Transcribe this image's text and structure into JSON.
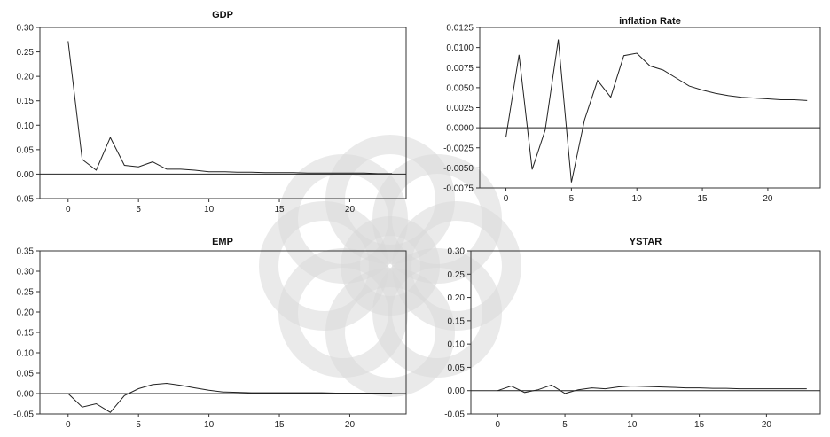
{
  "chart_data": [
    {
      "type": "line",
      "title": "GDP",
      "xlabel": "",
      "ylabel": "",
      "xlim": [
        -2,
        24
      ],
      "ylim": [
        -0.05,
        0.3
      ],
      "xticks": [
        0,
        5,
        10,
        15,
        20
      ],
      "yticks": [
        "-0.05",
        "0.00",
        "0.05",
        "0.10",
        "0.15",
        "0.20",
        "0.25",
        "0.30"
      ],
      "x": [
        0,
        1,
        2,
        3,
        4,
        5,
        6,
        7,
        8,
        9,
        10,
        11,
        12,
        13,
        14,
        15,
        16,
        17,
        18,
        19,
        20,
        21,
        22,
        23
      ],
      "series": [
        {
          "values": [
            0.272,
            0.03,
            0.008,
            0.075,
            0.018,
            0.015,
            0.025,
            0.01,
            0.01,
            0.008,
            0.005,
            0.005,
            0.004,
            0.004,
            0.003,
            0.003,
            0.003,
            0.002,
            0.002,
            0.002,
            0.002,
            0.002,
            0.001,
            0.001
          ]
        }
      ]
    },
    {
      "type": "line",
      "title": "inflation Rate",
      "xlabel": "",
      "ylabel": "",
      "xlim": [
        -2,
        24
      ],
      "ylim": [
        -0.0075,
        0.0125
      ],
      "xticks": [
        0,
        5,
        10,
        15,
        20
      ],
      "yticks": [
        "-0.0075",
        "-0.0050",
        "-0.0025",
        "0.0000",
        "0.0025",
        "0.0050",
        "0.0075",
        "0.0100",
        "0.0125"
      ],
      "x": [
        0,
        1,
        2,
        3,
        4,
        5,
        6,
        7,
        8,
        9,
        10,
        11,
        12,
        13,
        14,
        15,
        16,
        17,
        18,
        19,
        20,
        21,
        22,
        23
      ],
      "series": [
        {
          "values": [
            -0.0012,
            0.0091,
            -0.0052,
            -0.0003,
            0.011,
            -0.0068,
            0.001,
            0.0059,
            0.0038,
            0.009,
            0.0093,
            0.0077,
            0.0072,
            0.0062,
            0.0052,
            0.0047,
            0.0043,
            0.004,
            0.0038,
            0.0037,
            0.0036,
            0.0035,
            0.0035,
            0.0034
          ]
        }
      ]
    },
    {
      "type": "line",
      "title": "EMP",
      "xlabel": "",
      "ylabel": "",
      "xlim": [
        -2,
        24
      ],
      "ylim": [
        -0.05,
        0.35
      ],
      "xticks": [
        0,
        5,
        10,
        15,
        20
      ],
      "yticks": [
        "-0.05",
        "0.00",
        "0.05",
        "0.10",
        "0.15",
        "0.20",
        "0.25",
        "0.30",
        "0.35"
      ],
      "x": [
        0,
        1,
        2,
        3,
        4,
        5,
        6,
        7,
        8,
        9,
        10,
        11,
        12,
        13,
        14,
        15,
        16,
        17,
        18,
        19,
        20,
        21,
        22,
        23
      ],
      "series": [
        {
          "values": [
            0.0,
            -0.033,
            -0.025,
            -0.046,
            -0.005,
            0.012,
            0.022,
            0.025,
            0.02,
            0.014,
            0.008,
            0.004,
            0.003,
            0.002,
            0.002,
            0.002,
            0.002,
            0.002,
            0.002,
            0.001,
            0.001,
            0.001,
            0.001,
            0.001
          ]
        }
      ]
    },
    {
      "type": "line",
      "title": "YSTAR",
      "xlabel": "",
      "ylabel": "",
      "xlim": [
        -2,
        24
      ],
      "ylim": [
        -0.05,
        0.3
      ],
      "xticks": [
        0,
        5,
        10,
        15,
        20
      ],
      "yticks": [
        "-0.05",
        "0.00",
        "0.05",
        "0.10",
        "0.15",
        "0.20",
        "0.25",
        "0.30"
      ],
      "x": [
        0,
        1,
        2,
        3,
        4,
        5,
        6,
        7,
        8,
        9,
        10,
        11,
        12,
        13,
        14,
        15,
        16,
        17,
        18,
        19,
        20,
        21,
        22,
        23
      ],
      "series": [
        {
          "values": [
            0.0,
            0.01,
            -0.004,
            0.002,
            0.012,
            -0.006,
            0.002,
            0.006,
            0.004,
            0.008,
            0.01,
            0.009,
            0.008,
            0.007,
            0.006,
            0.006,
            0.005,
            0.005,
            0.004,
            0.004,
            0.004,
            0.004,
            0.004,
            0.004
          ]
        }
      ]
    }
  ],
  "watermark": {
    "kind": "geometric-rosette-logo",
    "color": "#d9d9d9"
  }
}
